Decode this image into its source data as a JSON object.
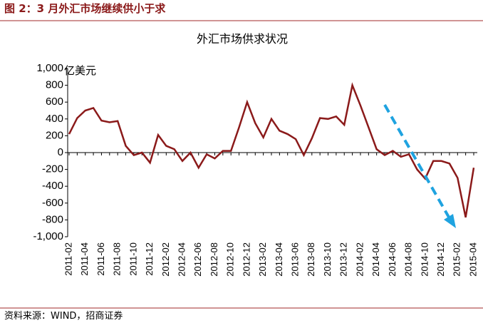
{
  "chart_data": {
    "type": "line",
    "header": "图 2：3 月外汇市场继续供小于求",
    "title": "外汇市场供求状况",
    "y_label": "亿美元",
    "source": "资料来源：WIND，招商证券",
    "categories": [
      "2011-02",
      null,
      "2011-04",
      null,
      "2011-06",
      null,
      "2011-08",
      null,
      "2011-10",
      null,
      "2011-12",
      null,
      "2012-02",
      null,
      "2012-04",
      null,
      "2012-06",
      null,
      "2012-08",
      null,
      "2012-10",
      null,
      "2012-12",
      null,
      "2013-02",
      null,
      "2013-04",
      null,
      "2013-06",
      null,
      "2013-08",
      null,
      "2013-10",
      null,
      "2013-12",
      null,
      "2014-02",
      null,
      "2014-04",
      null,
      "2014-06",
      null,
      "2014-08",
      null,
      "2014-10",
      null,
      "2014-12",
      null,
      "2015-02",
      null,
      "2015-04"
    ],
    "series": [
      {
        "name": "外汇市场供求",
        "color": "#8b1a1a",
        "values": [
          220,
          410,
          500,
          530,
          380,
          360,
          375,
          80,
          -30,
          0,
          -120,
          210,
          80,
          40,
          -100,
          0,
          -180,
          -20,
          -70,
          20,
          20,
          300,
          600,
          350,
          180,
          400,
          260,
          220,
          160,
          -30,
          170,
          410,
          400,
          430,
          330,
          800,
          560,
          300,
          40,
          -30,
          20,
          -50,
          -20,
          -200,
          -310,
          -100,
          -100,
          -130,
          -300,
          -770,
          -180
        ]
      }
    ],
    "ylim": [
      -1000,
      1000
    ],
    "yticks": [
      {
        "value": 1000,
        "label": "1,000"
      },
      800,
      600,
      400,
      200,
      0,
      -200,
      -400,
      -600,
      -800,
      {
        "value": -1000,
        "label": "-1,000"
      }
    ]
  }
}
